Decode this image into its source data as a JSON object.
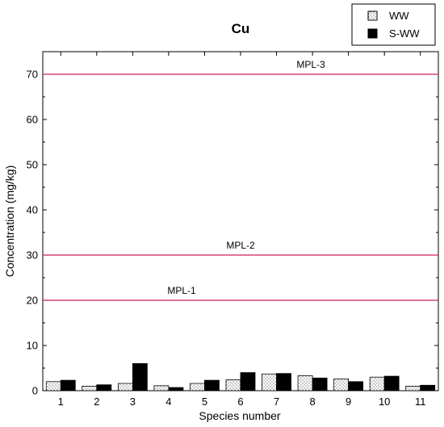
{
  "chart_data": {
    "type": "bar",
    "title": "Cu",
    "xlabel": "Species number",
    "ylabel": "Concentration (mg/kg)",
    "ylim": [
      0,
      75
    ],
    "yticks": [
      0,
      10,
      20,
      30,
      40,
      50,
      60,
      70
    ],
    "categories": [
      "1",
      "2",
      "3",
      "4",
      "5",
      "6",
      "7",
      "8",
      "9",
      "10",
      "11"
    ],
    "series": [
      {
        "name": "WW",
        "pattern": "dotted-white",
        "values": [
          2.0,
          1.0,
          1.6,
          1.1,
          1.6,
          2.4,
          3.7,
          3.3,
          2.6,
          3.0,
          1.0
        ]
      },
      {
        "name": "S-WW",
        "pattern": "solid-black",
        "values": [
          2.3,
          1.3,
          6.0,
          0.7,
          2.3,
          4.0,
          3.8,
          2.8,
          2.0,
          3.2,
          1.2
        ]
      }
    ],
    "reference_lines": [
      {
        "label": "MPL-1",
        "value": 20,
        "color": "#cc2255"
      },
      {
        "label": "MPL-2",
        "value": 30,
        "color": "#cc2255"
      },
      {
        "label": "MPL-3",
        "value": 70,
        "color": "#cc2255"
      }
    ],
    "legend_position": "top-right",
    "grid": false
  }
}
